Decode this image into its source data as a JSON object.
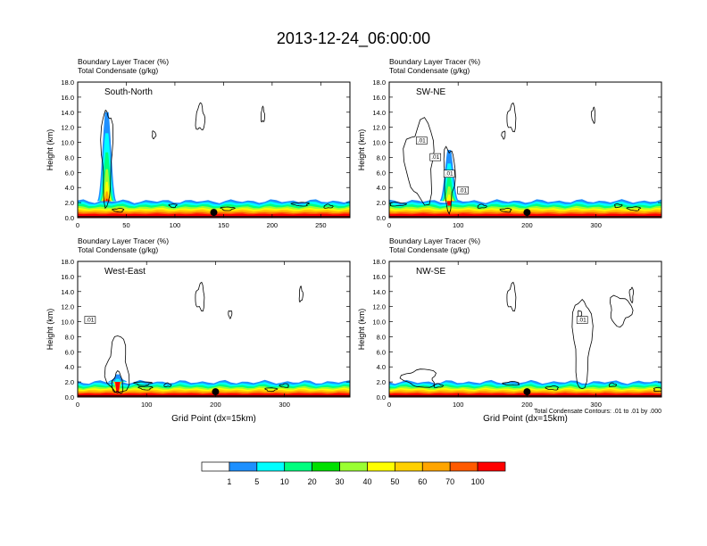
{
  "title": "2013-12-24_06:00:00",
  "chart_data": [
    {
      "type": "heatmap",
      "variable_labels": [
        "Boundary Layer Tracer   (%)",
        "Total Condensate   (g/kg)"
      ],
      "cross_section": "South-North",
      "ylabel": "Height (km)",
      "xlabel": "",
      "xlim": [
        0,
        280
      ],
      "ylim": [
        0,
        18
      ],
      "xticks": [
        0,
        50,
        100,
        150,
        200,
        250
      ],
      "yticks": [
        0,
        2,
        4,
        6,
        8,
        10,
        12,
        14,
        16,
        18
      ],
      "marker_x": 140,
      "contour_labels": [],
      "plume_x": 30,
      "plume_top_km": 14,
      "boundary_layer_top_km": 2.2
    },
    {
      "type": "heatmap",
      "variable_labels": [
        "Boundary Layer Tracer   (%)",
        "Total Condensate   (g/kg)"
      ],
      "cross_section": "SW-NE",
      "ylabel": "Height (km)",
      "xlabel": "",
      "xlim": [
        0,
        395
      ],
      "ylim": [
        0,
        18
      ],
      "xticks": [
        0,
        100,
        200,
        300
      ],
      "yticks": [
        0,
        2,
        4,
        6,
        8,
        10,
        12,
        14,
        16,
        18
      ],
      "marker_x": 200,
      "contour_labels": [
        ".01",
        ".01",
        ".01",
        ".01"
      ],
      "plume_x": 87,
      "plume_top_km": 9,
      "boundary_layer_top_km": 2.2
    },
    {
      "type": "heatmap",
      "variable_labels": [
        "Boundary Layer Tracer   (%)",
        "Total Condensate   (g/kg)"
      ],
      "cross_section": "West-East",
      "ylabel": "Height (km)",
      "xlabel": "Grid Point (dx=15km)",
      "xlim": [
        0,
        395
      ],
      "ylim": [
        0,
        18
      ],
      "xticks": [
        0,
        100,
        200,
        300
      ],
      "yticks": [
        0,
        2,
        4,
        6,
        8,
        10,
        12,
        14,
        16,
        18
      ],
      "marker_x": 200,
      "contour_labels": [
        ".01"
      ],
      "plume_x": 58,
      "plume_top_km": 3,
      "boundary_layer_top_km": 2.0
    },
    {
      "type": "heatmap",
      "variable_labels": [
        "Boundary Layer Tracer   (%)",
        "Total Condensate   (g/kg)"
      ],
      "cross_section": "NW-SE",
      "ylabel": "Height (km)",
      "xlabel": "Grid Point (dx=15km)",
      "xlim": [
        0,
        395
      ],
      "ylim": [
        0,
        18
      ],
      "xticks": [
        0,
        100,
        200,
        300
      ],
      "yticks": [
        0,
        2,
        4,
        6,
        8,
        10,
        12,
        14,
        16,
        18
      ],
      "marker_x": 200,
      "contour_labels": [
        ".01"
      ],
      "plume_x": 0,
      "plume_top_km": 0,
      "boundary_layer_top_km": 2.0,
      "note": "Total Condensate Contours: .01 to .01 by .000"
    }
  ],
  "colorbar": {
    "colors": [
      "#ffffff",
      "#1e90ff",
      "#00ffff",
      "#00ff7f",
      "#00e000",
      "#9aff32",
      "#ffff00",
      "#ffd000",
      "#ffa500",
      "#ff5a00",
      "#ff0000"
    ],
    "labels": [
      "1",
      "5",
      "10",
      "20",
      "30",
      "40",
      "50",
      "60",
      "70",
      "100"
    ]
  }
}
